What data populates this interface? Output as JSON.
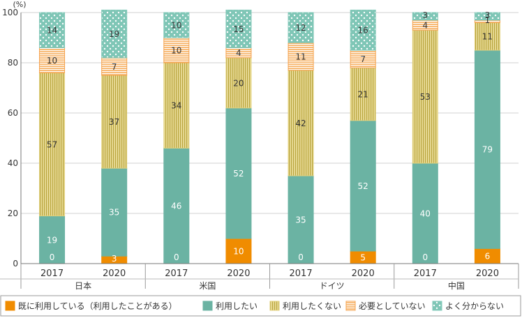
{
  "chart_data": {
    "type": "bar",
    "stacked": true,
    "unit_label": "(%)",
    "ylim": [
      0,
      100
    ],
    "yticks": [
      0,
      20,
      40,
      60,
      80,
      100
    ],
    "groups": [
      {
        "name": "日本",
        "years": [
          "2017",
          "2020"
        ]
      },
      {
        "name": "米国",
        "years": [
          "2017",
          "2020"
        ]
      },
      {
        "name": "ドイツ",
        "years": [
          "2017",
          "2020"
        ]
      },
      {
        "name": "中国",
        "years": [
          "2017",
          "2020"
        ]
      }
    ],
    "series": [
      {
        "name": "既に利用している（利用したことがある）",
        "color": "#f08c00",
        "pattern": "solid",
        "label_color": "#ffffff",
        "values": [
          0,
          3,
          0,
          10,
          0,
          5,
          0,
          6
        ]
      },
      {
        "name": "利用したい",
        "color": "#6bb3a3",
        "pattern": "solid",
        "label_color": "#ffffff",
        "values": [
          19,
          35,
          46,
          52,
          35,
          52,
          40,
          79
        ]
      },
      {
        "name": "利用したくない",
        "color": "#e3d27e",
        "pattern": "vlines",
        "label_color": "#333333",
        "values": [
          57,
          37,
          34,
          20,
          42,
          21,
          53,
          11
        ]
      },
      {
        "name": "必要としていない",
        "color": "#f5a04a",
        "pattern": "hlines",
        "label_color": "#333333",
        "values": [
          10,
          7,
          10,
          4,
          11,
          7,
          4,
          1
        ]
      },
      {
        "name": "よく分からない",
        "color": "#82c8b8",
        "pattern": "dots",
        "label_color": "#333333",
        "values": [
          14,
          19,
          10,
          15,
          12,
          16,
          3,
          3
        ]
      }
    ]
  }
}
